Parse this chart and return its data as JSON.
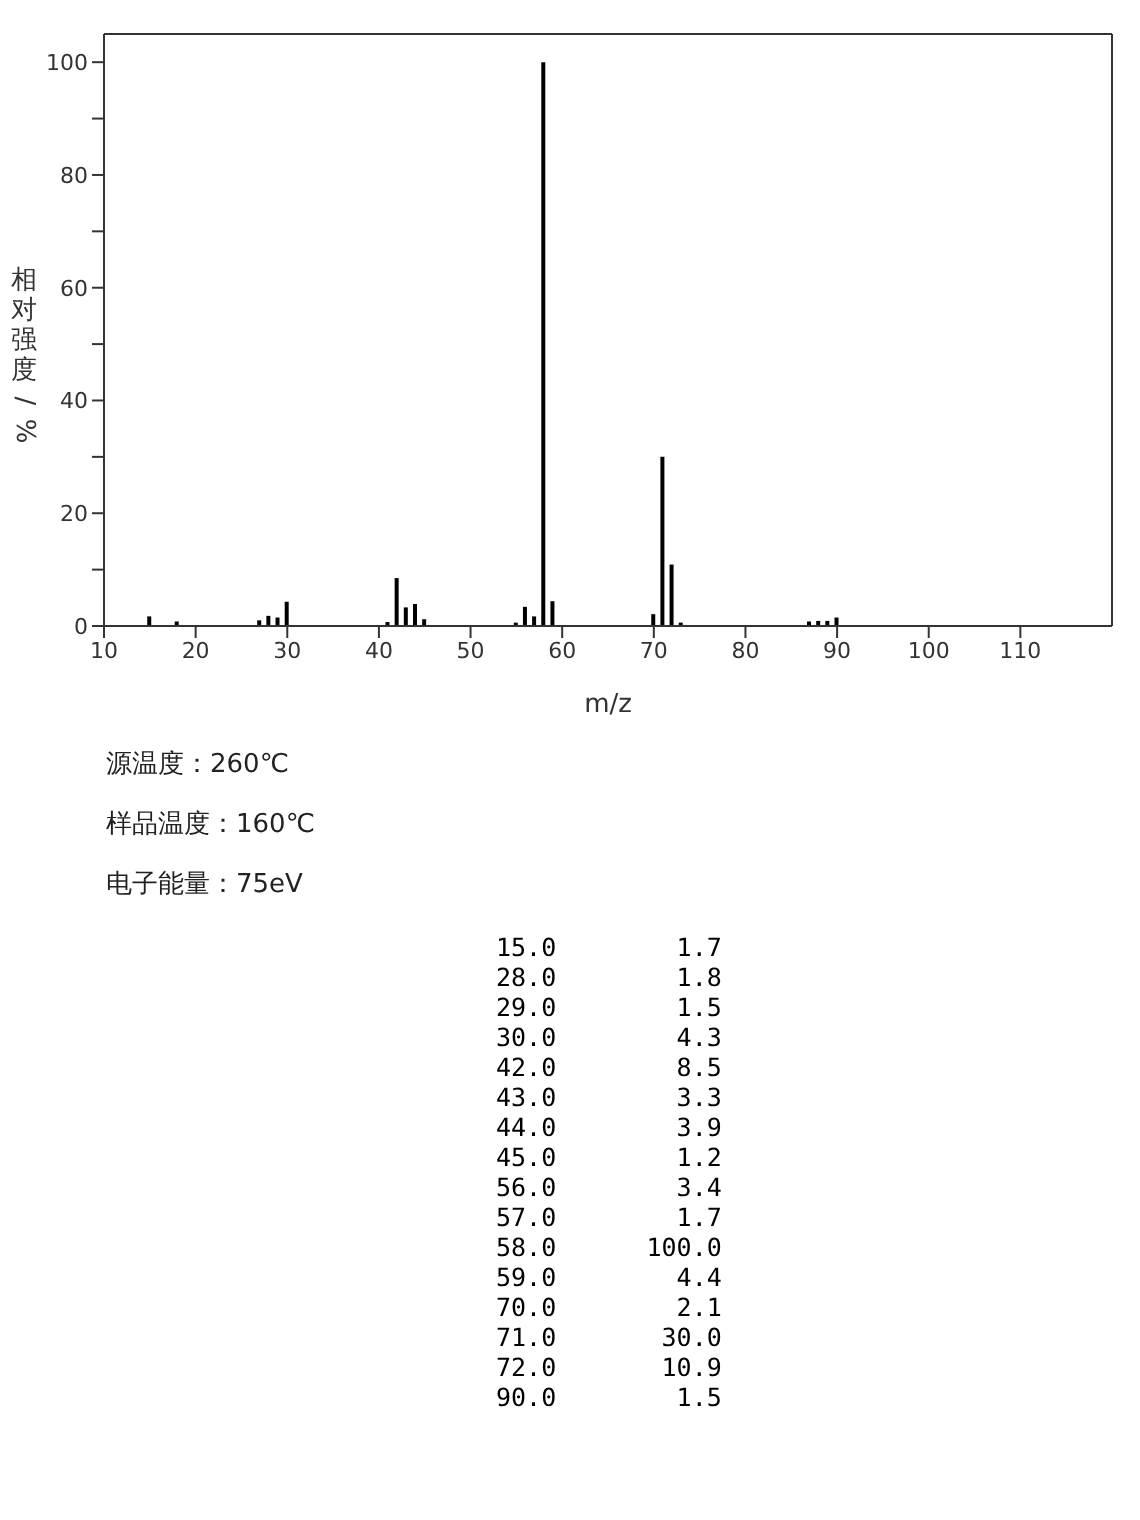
{
  "chart_data": {
    "type": "bar",
    "xlabel": "m/z",
    "ylabel": "相对强度/%",
    "x": [
      15,
      18,
      27,
      28,
      29,
      30,
      41,
      42,
      43,
      44,
      45,
      55,
      56,
      57,
      58,
      59,
      70,
      71,
      72,
      73,
      87,
      88,
      89,
      90
    ],
    "values": [
      1.7,
      0.8,
      1.0,
      1.8,
      1.5,
      4.3,
      0.7,
      8.5,
      3.3,
      3.9,
      1.2,
      0.6,
      3.4,
      1.7,
      100.0,
      4.4,
      2.1,
      30.0,
      10.9,
      0.6,
      0.8,
      0.9,
      0.9,
      1.5
    ],
    "color": "#000000",
    "xlim": [
      10,
      120
    ],
    "xticks": [
      10,
      20,
      30,
      40,
      50,
      60,
      70,
      80,
      90,
      100,
      110
    ],
    "ylim": [
      0,
      105
    ],
    "yticks": [
      0,
      {
        "value": 10,
        "label": null
      },
      20,
      {
        "value": 30,
        "label": null
      },
      40,
      {
        "value": 50,
        "label": null
      },
      60,
      {
        "value": 70,
        "label": null
      },
      80,
      {
        "value": 90,
        "label": null
      },
      100
    ],
    "annotations": [
      "源温度：260℃",
      "样品温度：160℃",
      "电子能量：75eV",
      "15.0        1.7",
      "28.0        1.8",
      "29.0        1.5",
      "30.0        4.3",
      "42.0        8.5",
      "43.0        3.3",
      "44.0        3.9",
      "45.0        1.2",
      "56.0        3.4",
      "57.0        1.7",
      "58.0      100.0",
      "59.0        4.4",
      "70.0        2.1",
      "71.0       30.0",
      "72.0       10.9",
      "90.0        1.5"
    ]
  }
}
